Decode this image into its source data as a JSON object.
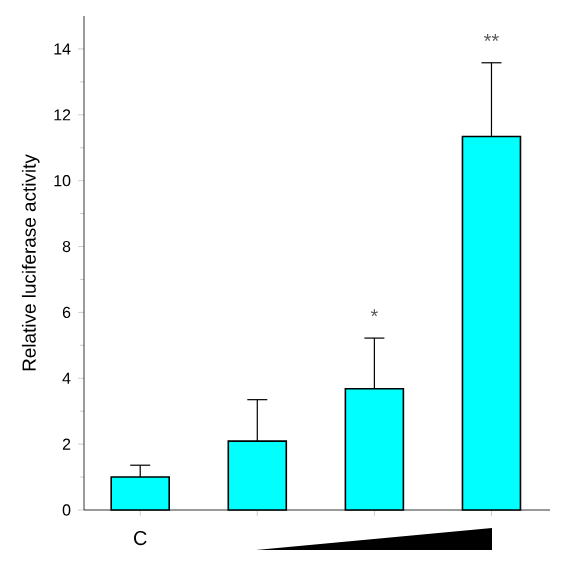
{
  "chart_data": {
    "type": "bar",
    "ylabel": "Relative luciferase activity",
    "categories": [
      "C",
      null,
      null,
      null
    ],
    "values": [
      1.0,
      2.09,
      3.68,
      11.34
    ],
    "color": "#00ffff",
    "errors": [
      [
        1.0,
        1.36
      ],
      [
        2.09,
        3.35
      ],
      [
        3.68,
        5.22
      ],
      [
        11.34,
        13.58
      ]
    ],
    "ylim": [
      0,
      15
    ],
    "yticks": [
      0,
      2,
      4,
      6,
      8,
      10,
      12,
      14
    ],
    "annotations": [
      "*",
      "**"
    ],
    "grid": false
  }
}
